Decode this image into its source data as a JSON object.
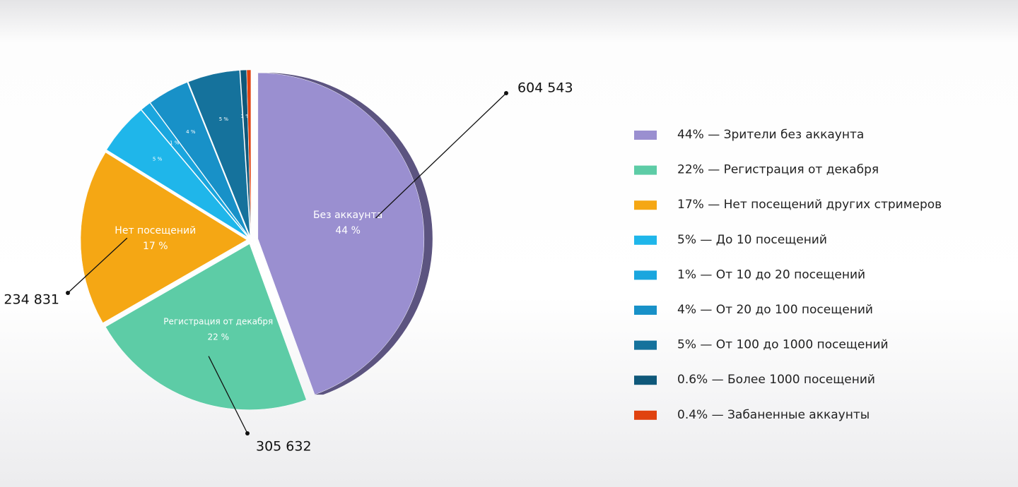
{
  "chart_data": {
    "type": "pie",
    "series": [
      {
        "name": "44% — Зрители без аккаунта",
        "color": "#9a8fd0",
        "values": [
          44
        ]
      },
      {
        "name": "22% — Регистрация от декабря",
        "color": "#5dcca6",
        "values": [
          22
        ]
      },
      {
        "name": "17% — Нет посещений других стримеров",
        "color": "#f5a714",
        "values": [
          17
        ]
      },
      {
        "name": "5% — До 10 посещений",
        "color": "#1fb6ea",
        "values": [
          5
        ]
      },
      {
        "name": "1% — От 10 до 20 посещений",
        "color": "#1aa6de",
        "values": [
          1
        ]
      },
      {
        "name": "4% — От 20 до 100 посещений",
        "color": "#1891c8",
        "values": [
          4
        ]
      },
      {
        "name": "5% — От 100 до 1000 посещений",
        "color": "#15729c",
        "values": [
          5
        ]
      },
      {
        "name": "0.6% — Более 1000 посещений",
        "color": "#0f587a",
        "values": [
          0.6
        ]
      },
      {
        "name": "0.4% — Забаненные аккаунты",
        "color": "#e0420f",
        "values": [
          0.4
        ]
      }
    ],
    "slice_labels": [
      "Без аккаунта",
      "Регистрация от декабря",
      "Нет посещений",
      null,
      null,
      null,
      null,
      null,
      null
    ],
    "value_labels": [
      "44 %",
      "22 %",
      "17 %",
      "5 %",
      "1 %",
      "4 %",
      "5 %",
      "1 %",
      null
    ],
    "counts": [
      604543,
      305632,
      234831,
      null,
      null,
      null,
      null,
      null,
      null
    ],
    "count_labels": [
      "604 543",
      "305 632",
      "234 831",
      null,
      null,
      null,
      null,
      null,
      null
    ]
  }
}
